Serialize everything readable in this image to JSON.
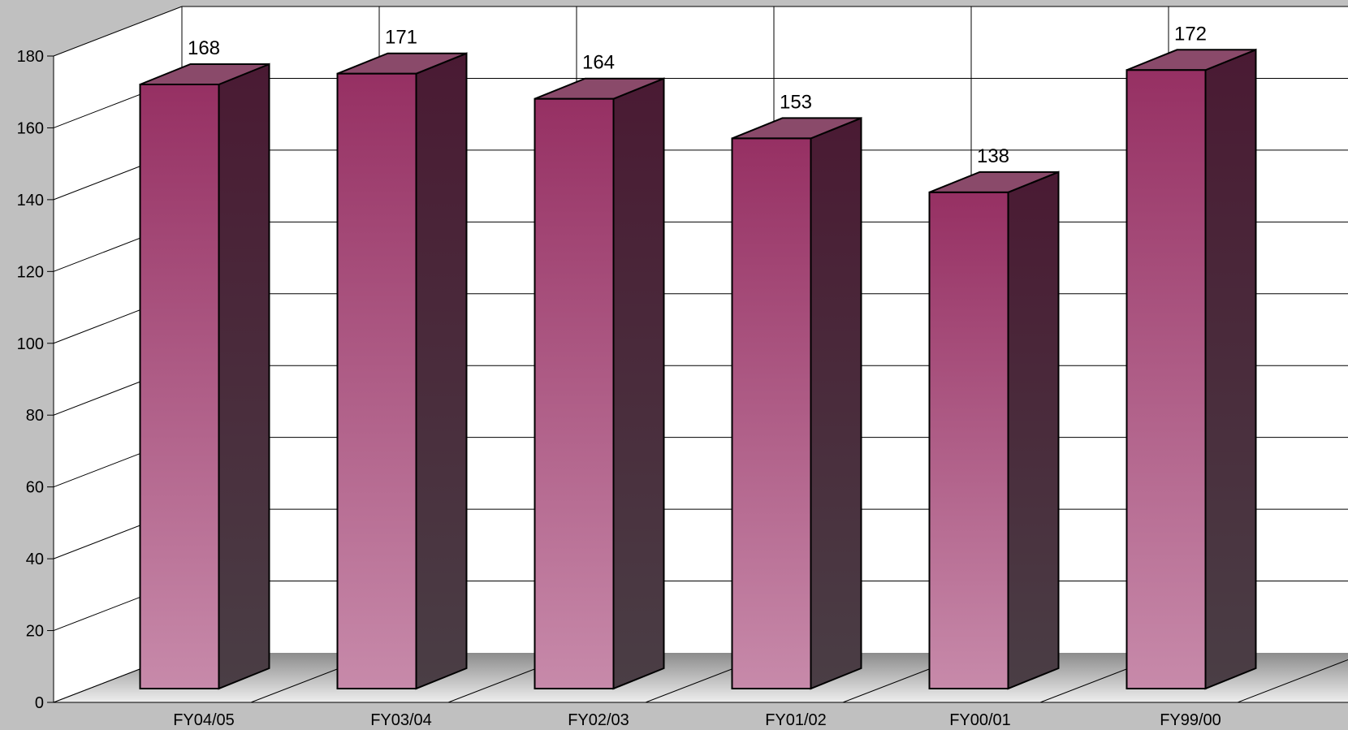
{
  "chart_data": {
    "type": "bar",
    "title": "",
    "xlabel": "",
    "ylabel": "",
    "categories": [
      "FY04/05",
      "FY03/04",
      "FY02/03",
      "FY01/02",
      "FY00/01",
      "FY99/00"
    ],
    "values": [
      168,
      171,
      164,
      153,
      138,
      172
    ],
    "ylim": [
      0,
      180
    ],
    "yticks": [
      0,
      20,
      40,
      60,
      80,
      100,
      120,
      140,
      160,
      180
    ],
    "grid": true,
    "legend": "none",
    "bar_style": "3d",
    "colors": {
      "bar_front_top": "#963063",
      "bar_front_bottom": "#c78aaa",
      "bar_side_top": "#4a1a33",
      "bar_side_bottom": "#4a3e45",
      "bar_top_face": "#8a4a6a",
      "background": "#c0c0c0",
      "plot_walls": "#ffffff",
      "floor": "#9a9a9a"
    }
  }
}
